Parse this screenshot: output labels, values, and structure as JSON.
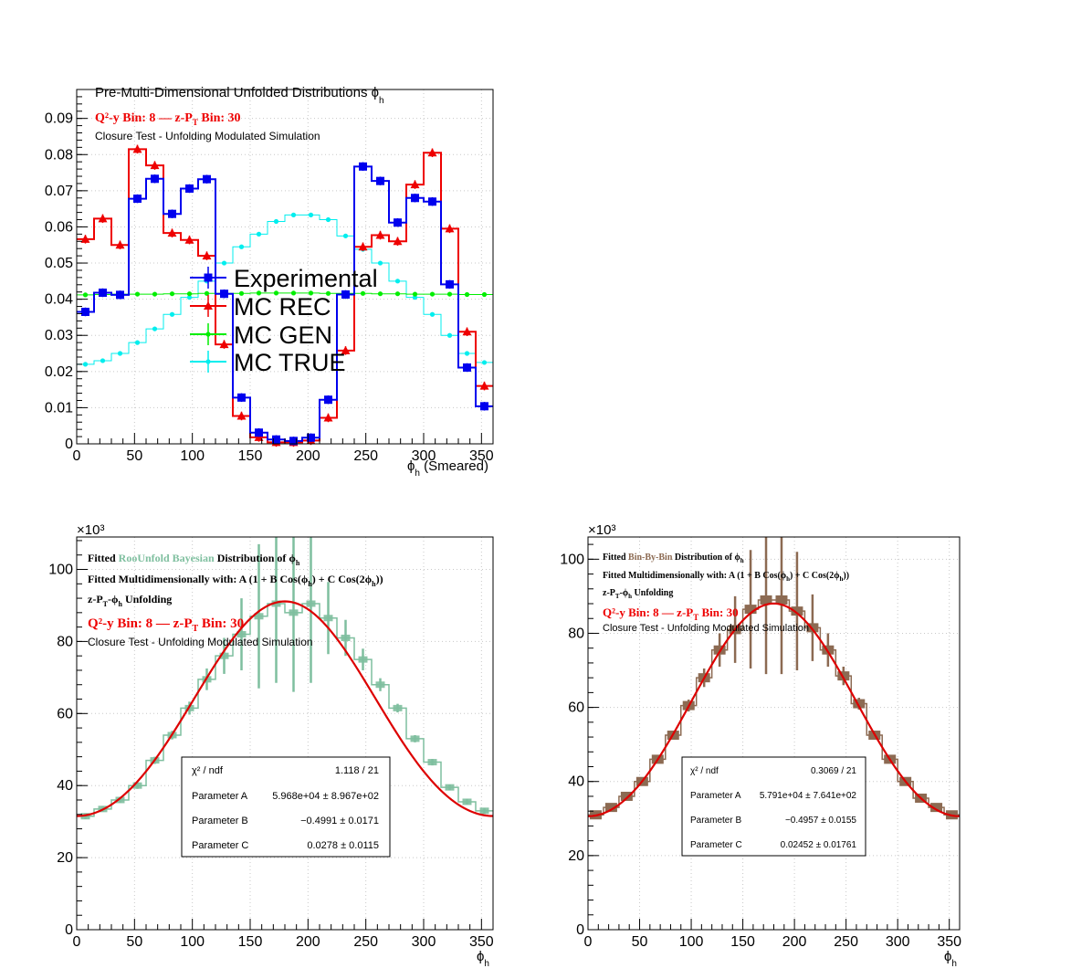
{
  "colors": {
    "experimental": "#0000ee",
    "mc_rec": "#ee0000",
    "mc_gen": "#00ee00",
    "mc_true": "#00eeee",
    "roounfold": "#7fbf9f",
    "binbybin": "#8c6a52",
    "fit": "#dd0000"
  },
  "chart_data": [
    {
      "type": "line",
      "panel": "top-left",
      "title": "Pre-Multi-Dimensional Unfolded Distributions ϕ",
      "title_sub": "h",
      "text": {
        "bin_line": "Q²-y Bin: 8 — z-P",
        "bin_sub": "T",
        "bin_tail": " Bin: 30",
        "closure": "Closure Test - Unfolding Modulated Simulation"
      },
      "xlabel": "ϕ",
      "xlabel_sub": "h",
      "xlabel_tail": " (Smeared)",
      "xlim": [
        0,
        360
      ],
      "ylim": [
        0,
        0.098
      ],
      "xticks": [
        0,
        50,
        100,
        150,
        200,
        250,
        300,
        350
      ],
      "xtick_labels": [
        "0",
        "50",
        "100",
        "150",
        "200",
        "250",
        "300",
        "350"
      ],
      "yticks": [
        0,
        0.01,
        0.02,
        0.03,
        0.04,
        0.05,
        0.06,
        0.07,
        0.08,
        0.09
      ],
      "ytick_labels": [
        "0",
        "0.01",
        "0.02",
        "0.03",
        "0.04",
        "0.05",
        "0.06",
        "0.07",
        "0.08",
        "0.09"
      ],
      "grid": true,
      "legend_position": "center",
      "bin_width": 15,
      "x": [
        7.5,
        22.5,
        37.5,
        52.5,
        67.5,
        82.5,
        97.5,
        112.5,
        127.5,
        142.5,
        157.5,
        172.5,
        187.5,
        202.5,
        217.5,
        232.5,
        247.5,
        262.5,
        277.5,
        292.5,
        307.5,
        322.5,
        337.5,
        352.5
      ],
      "series": [
        {
          "name": "Experimental",
          "key": "experimental",
          "marker": "square",
          "values": [
            0.0365,
            0.0418,
            0.0412,
            0.0678,
            0.0733,
            0.0636,
            0.0706,
            0.0732,
            0.0415,
            0.0128,
            0.0031,
            0.0012,
            0.0008,
            0.0017,
            0.0122,
            0.0413,
            0.0767,
            0.0727,
            0.0612,
            0.068,
            0.067,
            0.0441,
            0.0211,
            0.0104
          ]
        },
        {
          "name": "MC REC",
          "key": "mc_rec",
          "marker": "triangle",
          "values": [
            0.0566,
            0.0623,
            0.055,
            0.0815,
            0.077,
            0.0583,
            0.0564,
            0.052,
            0.0275,
            0.0077,
            0.0018,
            0.0004,
            0.0004,
            0.0009,
            0.0072,
            0.0258,
            0.0545,
            0.0577,
            0.056,
            0.0717,
            0.0805,
            0.0595,
            0.031,
            0.016
          ]
        },
        {
          "name": "MC GEN",
          "key": "mc_gen",
          "marker": "circle",
          "values": [
            0.0412,
            0.0413,
            0.0414,
            0.0414,
            0.0414,
            0.0415,
            0.0415,
            0.0416,
            0.0416,
            0.0416,
            0.0417,
            0.0417,
            0.0417,
            0.0417,
            0.0416,
            0.0416,
            0.0416,
            0.0415,
            0.0415,
            0.0414,
            0.0414,
            0.0414,
            0.0413,
            0.0413
          ]
        },
        {
          "name": "MC TRUE",
          "key": "mc_true",
          "marker": "circle",
          "values": [
            0.022,
            0.023,
            0.025,
            0.028,
            0.0318,
            0.0358,
            0.0405,
            0.045,
            0.05,
            0.0545,
            0.058,
            0.0615,
            0.0633,
            0.0633,
            0.062,
            0.0575,
            0.0538,
            0.05,
            0.045,
            0.0405,
            0.0358,
            0.03,
            0.025,
            0.0225
          ]
        }
      ]
    },
    {
      "type": "line",
      "panel": "bottom-left",
      "exponent_label": "×10³",
      "text": {
        "line1_a": "Fitted ",
        "line1_method": "RooUnfold Bayesian",
        "line1_b": " Distribution of ",
        "line1_phi": "ϕ",
        "line1_sub": "h",
        "line2": "Fitted Multidimensionally with: A (1 + B Cos(ϕ",
        "line2_sub": "h",
        "line2_mid": ") + C Cos(2ϕ",
        "line2_sub2": "h",
        "line2_end": "))",
        "line3_a": "z-P",
        "line3_sub1": "T",
        "line3_b": "-ϕ",
        "line3_sub2": "h",
        "line3_c": " Unfolding",
        "bin_line": "Q²-y Bin: 8 — z-P",
        "bin_sub": "T",
        "bin_tail": " Bin: 30",
        "closure": "Closure Test - Unfolding Modulated Simulation"
      },
      "xlabel": "ϕ",
      "xlabel_sub": "h",
      "xlim": [
        0,
        360
      ],
      "ylim": [
        0,
        109
      ],
      "xticks": [
        0,
        50,
        100,
        150,
        200,
        250,
        300,
        350
      ],
      "xtick_labels": [
        "0",
        "50",
        "100",
        "150",
        "200",
        "250",
        "300",
        "350"
      ],
      "yticks": [
        0,
        20,
        40,
        60,
        80,
        100
      ],
      "ytick_labels": [
        "0",
        "20",
        "40",
        "60",
        "80",
        "100"
      ],
      "grid": true,
      "bin_width": 15,
      "x": [
        7.5,
        22.5,
        37.5,
        52.5,
        67.5,
        82.5,
        97.5,
        112.5,
        127.5,
        142.5,
        157.5,
        172.5,
        187.5,
        202.5,
        217.5,
        232.5,
        247.5,
        262.5,
        277.5,
        292.5,
        307.5,
        322.5,
        337.5,
        352.5
      ],
      "series": [
        {
          "name": "",
          "key": "roounfold",
          "values": [
            31.5,
            33.5,
            36.0,
            40.0,
            47.0,
            54.0,
            61.5,
            69.5,
            76.0,
            82.0,
            87.0,
            90.5,
            88.0,
            90.5,
            86.5,
            81.0,
            75.0,
            68.0,
            61.5,
            53.0,
            46.5,
            39.5,
            35.5,
            33.0
          ],
          "errors": [
            0.8,
            0.8,
            0.8,
            0.9,
            1.0,
            1.2,
            1.8,
            3.0,
            5.0,
            10.0,
            20.0,
            22.0,
            22.0,
            22.0,
            10.0,
            5.0,
            3.0,
            1.8,
            1.2,
            1.0,
            0.9,
            0.8,
            0.8,
            0.8
          ]
        }
      ],
      "fit": {
        "A": 59.68,
        "B": -0.4991,
        "C": 0.0278
      },
      "stats": {
        "chi2_label": "χ² / ndf",
        "chi2_value": "1.118 / 21",
        "rows": [
          {
            "label": "Parameter A",
            "value": "5.968e+04 ± 8.967e+02"
          },
          {
            "label": "Parameter B",
            "value": "−0.4991 ± 0.0171"
          },
          {
            "label": "Parameter C",
            "value": "0.0278 ± 0.0115"
          }
        ]
      }
    },
    {
      "type": "line",
      "panel": "bottom-right",
      "exponent_label": "×10³",
      "text": {
        "line1_a": "Fitted ",
        "line1_method": "Bin-By-Bin",
        "line1_b": " Distribution of ",
        "line1_phi": "ϕ",
        "line1_sub": "h",
        "line2": "Fitted Multidimensionally with: A (1 + B Cos(ϕ",
        "line2_sub": "h",
        "line2_mid": ") + C Cos(2ϕ",
        "line2_sub2": "h",
        "line2_end": "))",
        "line3_a": "z-P",
        "line3_sub1": "T",
        "line3_b": "-ϕ",
        "line3_sub2": "h",
        "line3_c": " Unfolding",
        "bin_line": "Q²-y Bin: 8 — z-P",
        "bin_sub": "T",
        "bin_tail": " Bin: 30",
        "closure": "Closure Test - Unfolding Modulated Simulation"
      },
      "xlabel": "ϕ",
      "xlabel_sub": "h",
      "xlim": [
        0,
        360
      ],
      "ylim": [
        0,
        106
      ],
      "xticks": [
        0,
        50,
        100,
        150,
        200,
        250,
        300,
        350
      ],
      "xtick_labels": [
        "0",
        "50",
        "100",
        "150",
        "200",
        "250",
        "300",
        "350"
      ],
      "yticks": [
        0,
        20,
        40,
        60,
        80,
        100
      ],
      "ytick_labels": [
        "0",
        "20",
        "40",
        "60",
        "80",
        "100"
      ],
      "grid": true,
      "bin_width": 15,
      "x": [
        7.5,
        22.5,
        37.5,
        52.5,
        67.5,
        82.5,
        97.5,
        112.5,
        127.5,
        142.5,
        157.5,
        172.5,
        187.5,
        202.5,
        217.5,
        232.5,
        247.5,
        262.5,
        277.5,
        292.5,
        307.5,
        322.5,
        337.5,
        352.5
      ],
      "series": [
        {
          "name": "",
          "key": "binbybin",
          "values": [
            31.0,
            33.0,
            36.0,
            40.0,
            46.0,
            52.5,
            60.5,
            68.0,
            75.5,
            81.0,
            86.5,
            89.0,
            89.0,
            86.0,
            81.5,
            75.5,
            68.5,
            61.0,
            52.5,
            46.0,
            40.0,
            35.5,
            33.0,
            31.0
          ],
          "errors": [
            0.9,
            0.9,
            0.9,
            1.0,
            1.0,
            1.2,
            1.6,
            2.5,
            4.5,
            9.0,
            16.0,
            20.0,
            20.0,
            16.0,
            9.0,
            4.5,
            2.5,
            1.6,
            1.2,
            1.0,
            1.0,
            0.9,
            0.9,
            0.9
          ]
        }
      ],
      "fit": {
        "A": 57.91,
        "B": -0.4957,
        "C": 0.02452
      },
      "stats": {
        "chi2_label": "χ² / ndf",
        "chi2_value": "0.3069 / 21",
        "rows": [
          {
            "label": "Parameter A",
            "value": "5.791e+04 ± 7.641e+02"
          },
          {
            "label": "Parameter B",
            "value": "−0.4957 ± 0.0155"
          },
          {
            "label": "Parameter C",
            "value": "0.02452 ± 0.01761"
          }
        ]
      }
    }
  ]
}
